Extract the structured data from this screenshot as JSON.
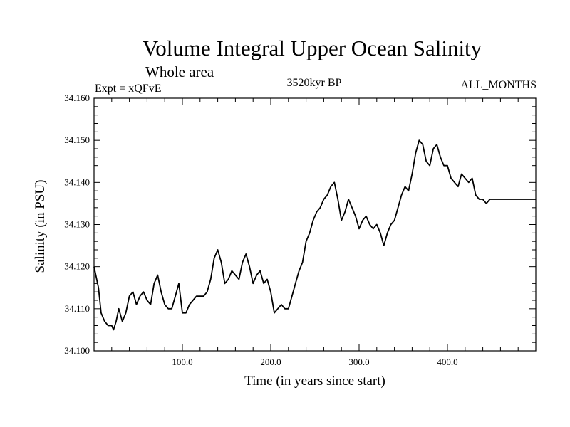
{
  "chart_data": {
    "type": "line",
    "title": "Volume Integral Upper Ocean Salinity",
    "subtitle": "Whole area",
    "left_label": "Expt = xQFvE",
    "center_label": "3520kyr BP",
    "right_label": "ALL_MONTHS",
    "xlabel": "Time (in years since start)",
    "ylabel": "Salinity (in PSU)",
    "xlim": [
      0,
      500
    ],
    "ylim": [
      34.1,
      34.16
    ],
    "x_ticks": [
      100,
      200,
      300,
      400
    ],
    "x_tick_labels": [
      "100.0",
      "200.0",
      "300.0",
      "400.0"
    ],
    "y_ticks": [
      34.1,
      34.11,
      34.12,
      34.13,
      34.14,
      34.15,
      34.16
    ],
    "y_tick_labels": [
      "34.100",
      "34.110",
      "34.120",
      "34.130",
      "34.140",
      "34.150",
      "34.160"
    ],
    "series": [
      {
        "name": "salinity",
        "x": [
          0,
          5,
          8,
          12,
          16,
          20,
          22,
          25,
          28,
          32,
          36,
          40,
          44,
          48,
          52,
          56,
          60,
          64,
          68,
          72,
          76,
          80,
          84,
          88,
          92,
          96,
          100,
          104,
          108,
          112,
          116,
          120,
          124,
          128,
          132,
          136,
          140,
          144,
          148,
          152,
          156,
          160,
          164,
          168,
          172,
          176,
          180,
          184,
          188,
          192,
          196,
          200,
          204,
          208,
          212,
          216,
          220,
          224,
          228,
          232,
          236,
          240,
          244,
          248,
          252,
          256,
          260,
          264,
          268,
          272,
          276,
          280,
          284,
          288,
          292,
          296,
          300,
          304,
          308,
          312,
          316,
          320,
          324,
          328,
          332,
          336,
          340,
          344,
          348,
          352,
          356,
          360,
          364,
          368,
          372,
          376,
          380,
          384,
          388,
          392,
          396,
          400,
          404,
          408,
          412,
          416,
          420,
          424,
          428,
          432,
          436,
          440,
          444,
          448,
          452,
          456,
          460,
          464,
          468,
          472,
          476,
          480,
          484,
          488,
          492,
          496,
          500
        ],
        "y": [
          34.12,
          34.115,
          34.109,
          34.107,
          34.106,
          34.106,
          34.105,
          34.107,
          34.11,
          34.107,
          34.109,
          34.113,
          34.114,
          34.111,
          34.113,
          34.114,
          34.112,
          34.111,
          34.116,
          34.118,
          34.114,
          34.111,
          34.11,
          34.11,
          34.113,
          34.116,
          34.109,
          34.109,
          34.111,
          34.112,
          34.113,
          34.113,
          34.113,
          34.114,
          34.117,
          34.122,
          34.124,
          34.121,
          34.116,
          34.117,
          34.119,
          34.118,
          34.117,
          34.121,
          34.123,
          34.12,
          34.116,
          34.118,
          34.119,
          34.116,
          34.117,
          34.114,
          34.109,
          34.11,
          34.111,
          34.11,
          34.11,
          34.113,
          34.116,
          34.119,
          34.121,
          34.126,
          34.128,
          34.131,
          34.133,
          34.134,
          34.136,
          34.137,
          34.139,
          34.14,
          34.136,
          34.131,
          34.133,
          34.136,
          34.134,
          34.132,
          34.129,
          34.131,
          34.132,
          34.13,
          34.129,
          34.13,
          34.128,
          34.125,
          34.128,
          34.13,
          34.131,
          34.134,
          34.137,
          34.139,
          34.138,
          34.142,
          34.147,
          34.15,
          34.149,
          34.145,
          34.144,
          34.148,
          34.149,
          34.146,
          34.144,
          34.144,
          34.141,
          34.14,
          34.139,
          34.142,
          34.141,
          34.14,
          34.141,
          34.137,
          34.136,
          34.136,
          34.135,
          34.136,
          34.136,
          34.136,
          34.136,
          34.136,
          34.136,
          34.136,
          34.136,
          34.136,
          34.136,
          34.136,
          34.136,
          34.136,
          34.136
        ]
      }
    ]
  }
}
